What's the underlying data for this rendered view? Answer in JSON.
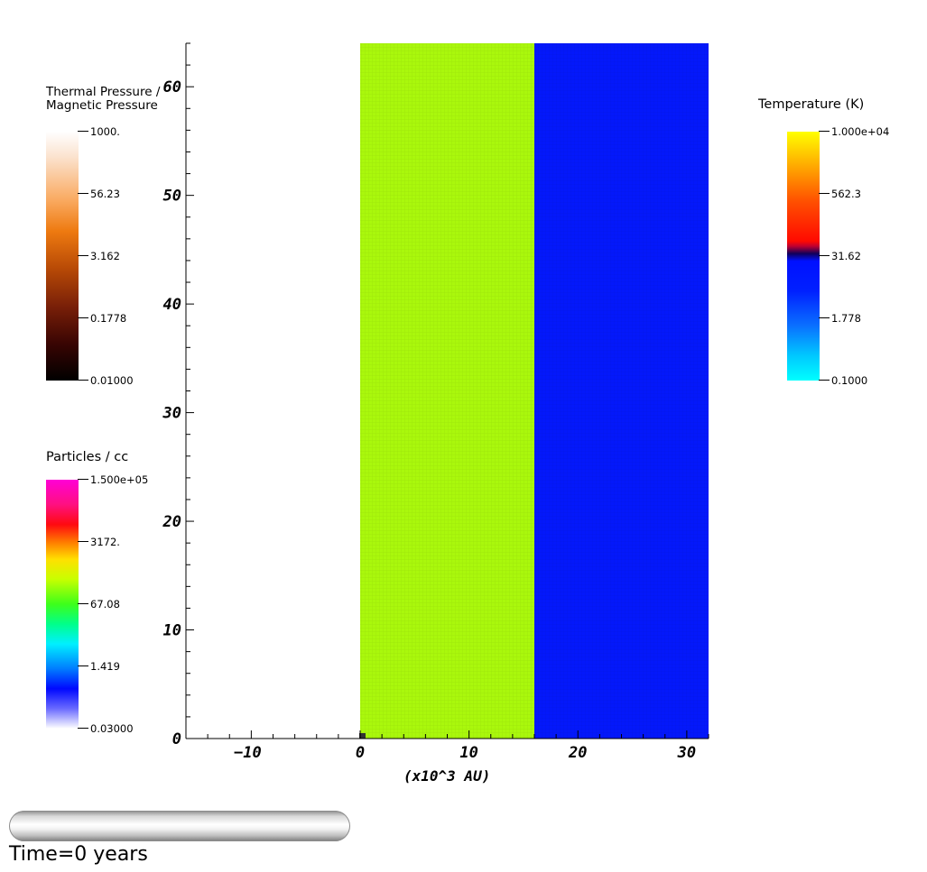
{
  "plot": {
    "axis": {
      "xlabel": "(x10^3 AU)",
      "xlim": [
        -16,
        32
      ],
      "ylim": [
        0,
        64
      ],
      "x_major": [
        -10,
        0,
        10,
        20,
        30
      ],
      "y_major": [
        0,
        10,
        20,
        30,
        40,
        50,
        60
      ]
    },
    "regions": [
      {
        "x0": -16,
        "x1": 0,
        "color": "#ffffff"
      },
      {
        "x0": 0,
        "x1": 16,
        "color": "#aaf80c"
      },
      {
        "x0": 16,
        "x1": 32,
        "color": "#0418fb"
      }
    ],
    "marker": {
      "x": 0,
      "y": 0,
      "color": "#333333"
    }
  },
  "legends": {
    "pressure": {
      "title_line1": "Thermal Pressure /",
      "title_line2": "Magnetic Pressure",
      "ticks": [
        "1000.",
        "56.23",
        "3.162",
        "0.1778",
        "0.01000"
      ]
    },
    "particles": {
      "title": "Particles / cc",
      "ticks": [
        "1.500e+05",
        "3172.",
        "67.08",
        "1.419",
        "0.03000"
      ]
    },
    "temperature": {
      "title": "Temperature (K)",
      "ticks": [
        "1.000e+04",
        "562.3",
        "31.62",
        "1.778",
        "0.1000"
      ]
    }
  },
  "time": {
    "label": "Time=0 years",
    "progress": 0
  }
}
